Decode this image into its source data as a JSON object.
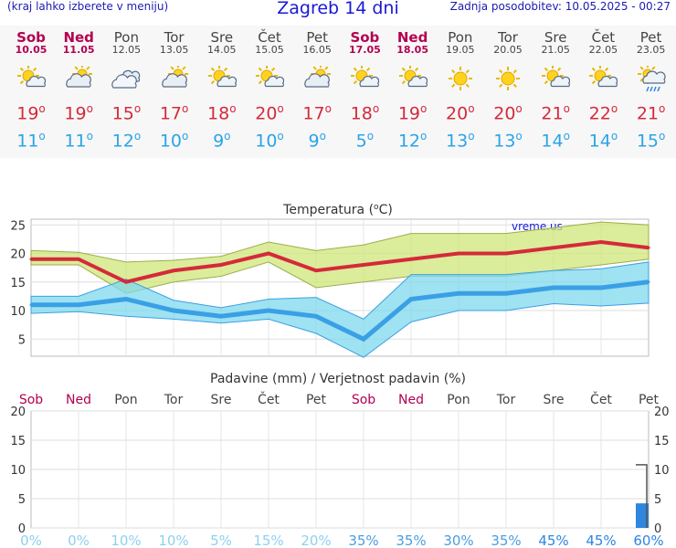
{
  "header": {
    "left": "(kraj lahko izberete v meniju)",
    "title": "Zagreb 14 dni",
    "right": "Zadnja posodobitev: 10.05.2025 - 00:27"
  },
  "days": [
    {
      "name": "Sob",
      "date": "10.05",
      "weekend": true,
      "icon": "sun-cloud-icon",
      "tmax": "19",
      "tmin": "11"
    },
    {
      "name": "Ned",
      "date": "11.05",
      "weekend": true,
      "icon": "cloud-sun-icon",
      "tmax": "19",
      "tmin": "11"
    },
    {
      "name": "Pon",
      "date": "12.05",
      "weekend": false,
      "icon": "clouds-icon",
      "tmax": "15",
      "tmin": "12"
    },
    {
      "name": "Tor",
      "date": "13.05",
      "weekend": false,
      "icon": "cloud-sun-icon",
      "tmax": "17",
      "tmin": "10"
    },
    {
      "name": "Sre",
      "date": "14.05",
      "weekend": false,
      "icon": "sun-cloud-icon",
      "tmax": "18",
      "tmin": "9"
    },
    {
      "name": "Čet",
      "date": "15.05",
      "weekend": false,
      "icon": "sun-cloud-icon",
      "tmax": "20",
      "tmin": "10"
    },
    {
      "name": "Pet",
      "date": "16.05",
      "weekend": false,
      "icon": "cloud-sun-icon",
      "tmax": "17",
      "tmin": "9"
    },
    {
      "name": "Sob",
      "date": "17.05",
      "weekend": true,
      "icon": "sun-cloud-icon",
      "tmax": "18",
      "tmin": "5"
    },
    {
      "name": "Ned",
      "date": "18.05",
      "weekend": true,
      "icon": "sun-cloud-icon",
      "tmax": "19",
      "tmin": "12"
    },
    {
      "name": "Pon",
      "date": "19.05",
      "weekend": false,
      "icon": "sun-icon",
      "tmax": "20",
      "tmin": "13"
    },
    {
      "name": "Tor",
      "date": "20.05",
      "weekend": false,
      "icon": "sun-icon",
      "tmax": "20",
      "tmin": "13"
    },
    {
      "name": "Sre",
      "date": "21.05",
      "weekend": false,
      "icon": "sun-cloud-icon",
      "tmax": "21",
      "tmin": "14"
    },
    {
      "name": "Čet",
      "date": "22.05",
      "weekend": false,
      "icon": "sun-cloud-icon",
      "tmax": "22",
      "tmin": "14"
    },
    {
      "name": "Pet",
      "date": "23.05",
      "weekend": false,
      "icon": "rain-cloud-icon",
      "tmax": "21",
      "tmin": "15"
    }
  ],
  "degree_symbol": "o",
  "colors": {
    "tmax_line": "#d42a3a",
    "tmin_line": "#3aa0e6",
    "tmax_band": "#cfe67a",
    "tmin_band": "#7fd8ec",
    "precip_bar": "#2e86de",
    "weekend_text": "#b30051"
  },
  "chart_data": [
    {
      "type": "line",
      "title": "Temperatura (",
      "title_unit": "C)",
      "watermark": "vreme.us",
      "categories": [
        "Sob",
        "Ned",
        "Pon",
        "Tor",
        "Sre",
        "Čet",
        "Pet",
        "Sob",
        "Ned",
        "Pon",
        "Tor",
        "Sre",
        "Čet",
        "Pet"
      ],
      "ylim": [
        2,
        26
      ],
      "yticks": [
        5,
        10,
        15,
        20,
        25
      ],
      "grid": true,
      "series": [
        {
          "values": [
            19,
            19,
            15,
            17,
            18,
            20,
            17,
            18,
            19,
            20,
            20,
            21,
            22,
            21
          ]
        },
        {
          "values": [
            11,
            11,
            12,
            10,
            9,
            10,
            9,
            5,
            12,
            13,
            13,
            14,
            14,
            15
          ]
        }
      ],
      "bands": [
        {
          "upper": [
            20.5,
            20.2,
            18.5,
            18.8,
            19.5,
            22,
            20.5,
            21.5,
            23.5,
            23.5,
            23.5,
            24.5,
            25.5,
            25
          ]
        },
        {
          "lower": [
            18,
            18,
            13,
            15,
            16,
            18.5,
            14,
            15,
            16,
            16,
            16,
            17,
            18,
            19
          ]
        },
        {
          "upper": [
            12.5,
            12.5,
            15.5,
            11.8,
            10.5,
            12,
            12.3,
            8.5,
            16.3,
            16.3,
            16.3,
            17,
            17.3,
            18.5
          ]
        },
        {
          "lower": [
            9.5,
            9.8,
            9,
            8.5,
            7.8,
            8.5,
            6,
            1.8,
            8,
            10,
            10,
            11.2,
            10.8,
            11.3
          ]
        }
      ]
    },
    {
      "type": "bar",
      "title": "Padavine (mm) / Verjetnost padavin (%)",
      "categories": [
        "Sob",
        "Ned",
        "Pon",
        "Tor",
        "Sre",
        "Čet",
        "Pet",
        "Sob",
        "Ned",
        "Pon",
        "Tor",
        "Sre",
        "Čet",
        "Pet"
      ],
      "ylim": [
        0,
        20
      ],
      "yticks": [
        0,
        5,
        10,
        15,
        20
      ],
      "values": [
        0,
        0,
        0,
        0,
        0,
        0,
        0,
        0,
        0,
        0,
        0,
        0,
        0,
        4.2
      ],
      "error_high": [
        null,
        null,
        null,
        null,
        null,
        null,
        null,
        null,
        null,
        null,
        null,
        null,
        null,
        10.8
      ],
      "probability": [
        "0%",
        "0%",
        "10%",
        "10%",
        "5%",
        "15%",
        "20%",
        "35%",
        "35%",
        "30%",
        "35%",
        "45%",
        "45%",
        "60%"
      ],
      "probability_values": [
        0,
        0,
        10,
        10,
        5,
        15,
        20,
        35,
        35,
        30,
        35,
        45,
        45,
        60
      ]
    }
  ]
}
